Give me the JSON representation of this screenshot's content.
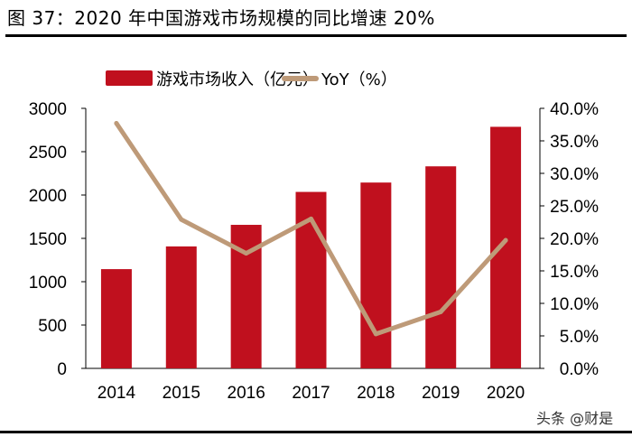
{
  "title": "图 37：2020 年中国游戏市场规模的同比增速 20%",
  "watermark": "头条 @财是",
  "chart_data": {
    "type": "bar+line",
    "categories": [
      "2014",
      "2015",
      "2016",
      "2017",
      "2018",
      "2019",
      "2020"
    ],
    "series": [
      {
        "name": "游戏市场收入（亿元）",
        "type": "bar",
        "axis": "left",
        "color": "#C0101E",
        "values": [
          1145,
          1407,
          1656,
          2036,
          2144,
          2331,
          2787
        ]
      },
      {
        "name": "YoY（%）",
        "type": "line",
        "axis": "right",
        "color": "#BE9A78",
        "values": [
          37.7,
          22.9,
          17.7,
          23.0,
          5.3,
          8.7,
          19.7
        ]
      }
    ],
    "left_axis": {
      "ylim": [
        0,
        3000
      ],
      "ticks": [
        "0",
        "500",
        "1000",
        "1500",
        "2000",
        "2500",
        "3000"
      ]
    },
    "right_axis": {
      "ylim": [
        0,
        40
      ],
      "ticks": [
        "0.0%",
        "5.0%",
        "10.0%",
        "15.0%",
        "20.0%",
        "25.0%",
        "30.0%",
        "35.0%",
        "40.0%"
      ]
    },
    "grid": false,
    "legend": "top"
  }
}
